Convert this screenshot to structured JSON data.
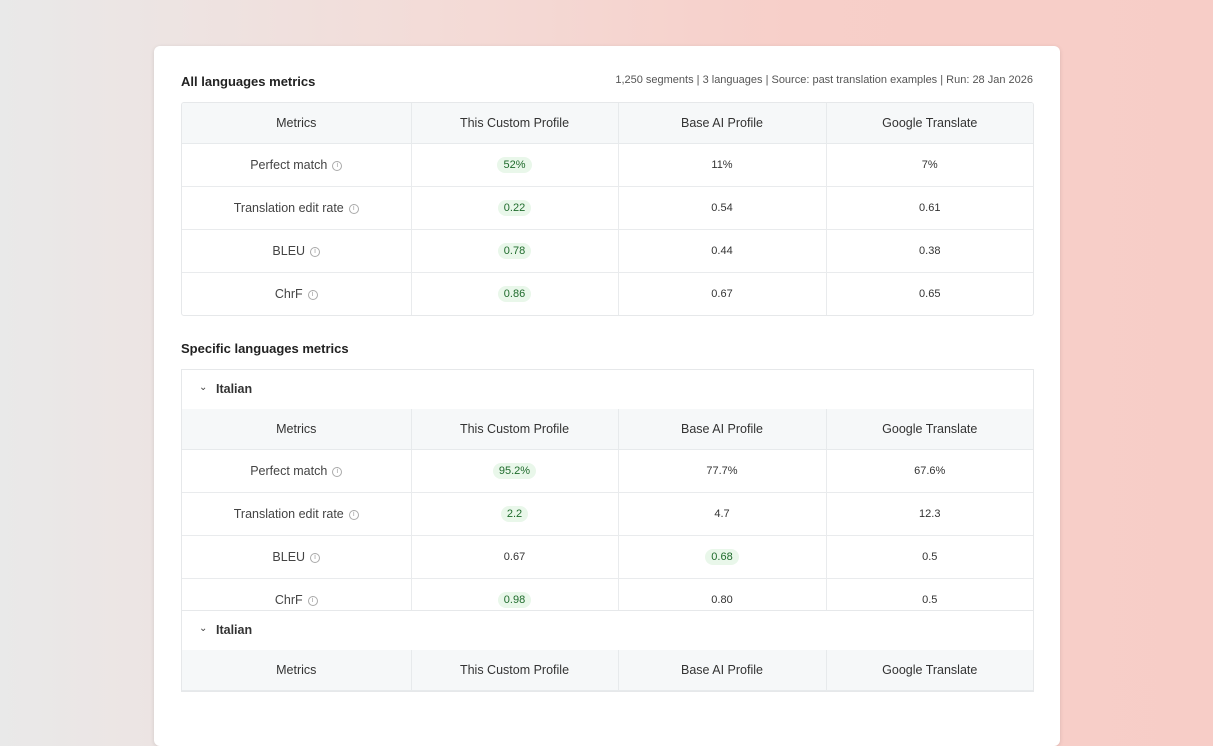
{
  "all": {
    "title": "All languages metrics",
    "meta": "1,250 segments | 3 languages | Source: past translation examples | Run: 28 Jan 2026",
    "headers": [
      "Metrics",
      "This Custom Profile",
      "Base AI Profile",
      "Google Translate"
    ],
    "rows": [
      {
        "metric": "Perfect match",
        "custom": "52%",
        "base": "11%",
        "google": "7%",
        "best": "custom"
      },
      {
        "metric": "Translation edit rate",
        "custom": "0.22",
        "base": "0.54",
        "google": "0.61",
        "best": "custom"
      },
      {
        "metric": "BLEU",
        "custom": "0.78",
        "base": "0.44",
        "google": "0.38",
        "best": "custom"
      },
      {
        "metric": "ChrF",
        "custom": "0.86",
        "base": "0.67",
        "google": "0.65",
        "best": "custom"
      }
    ]
  },
  "specific": {
    "title": "Specific languages metrics",
    "languages": [
      {
        "name": "Italian",
        "headers": [
          "Metrics",
          "This Custom Profile",
          "Base AI Profile",
          "Google Translate"
        ],
        "rows": [
          {
            "metric": "Perfect match",
            "custom": "95.2%",
            "base": "77.7%",
            "google": "67.6%",
            "best": "custom"
          },
          {
            "metric": "Translation edit rate",
            "custom": "2.2",
            "base": "4.7",
            "google": "12.3",
            "best": "custom"
          },
          {
            "metric": "BLEU",
            "custom": "0.67",
            "base": "0.68",
            "google": "0.5",
            "best": "base"
          },
          {
            "metric": "ChrF",
            "custom": "0.98",
            "base": "0.80",
            "google": "0.5",
            "best": "custom"
          }
        ]
      },
      {
        "name": "Italian",
        "headers": [
          "Metrics",
          "This Custom Profile",
          "Base AI Profile",
          "Google Translate"
        ],
        "rows": []
      }
    ]
  },
  "icons": {
    "info": "info-icon",
    "chevron": "chevron-down-icon"
  },
  "colors": {
    "highlight_bg": "#e9f7ea",
    "highlight_text": "#1f6b2c"
  }
}
